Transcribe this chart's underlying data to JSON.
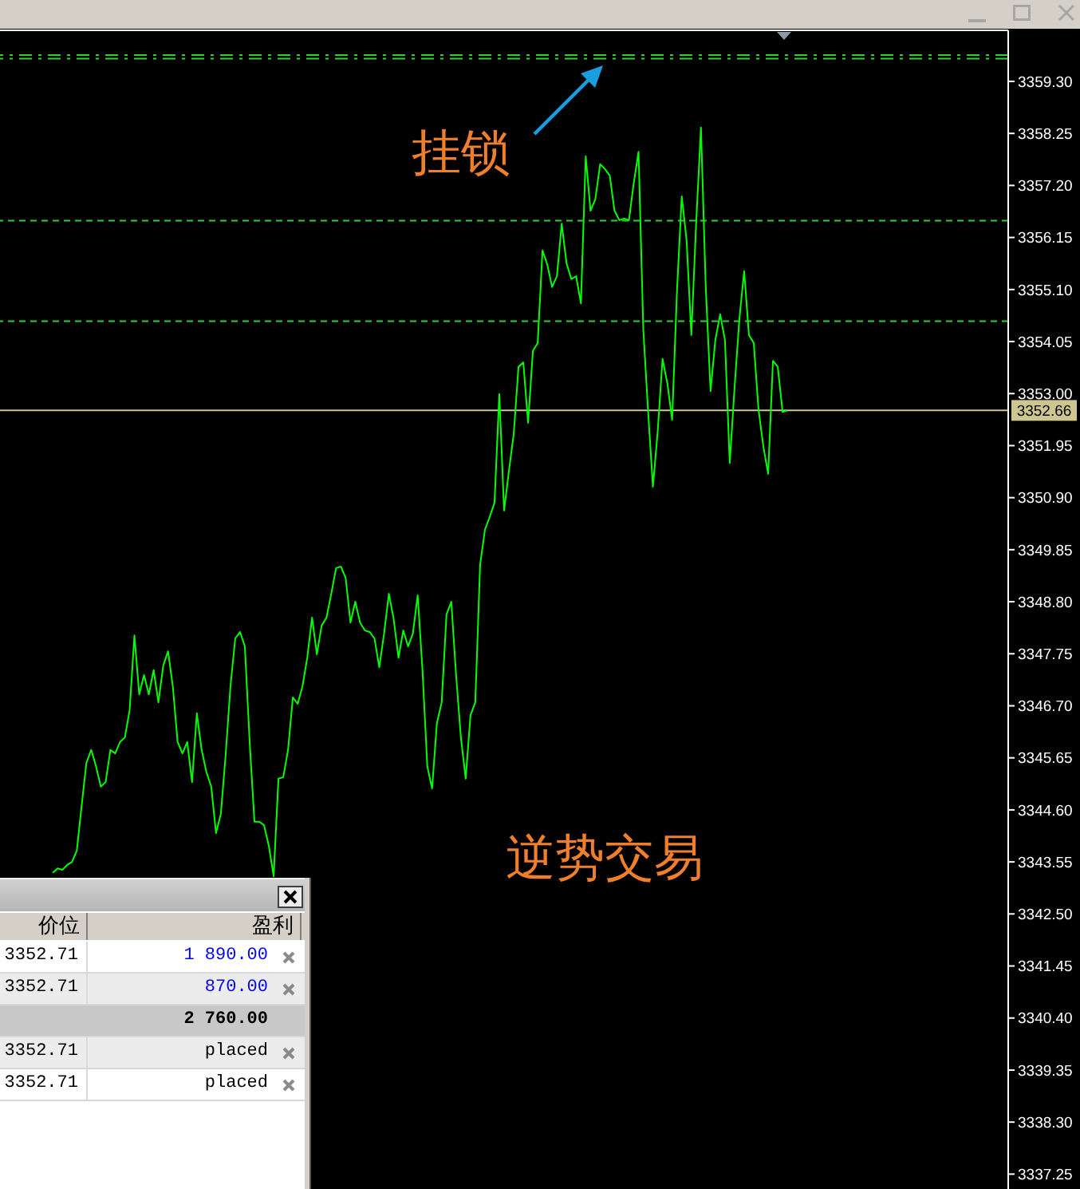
{
  "chart_data": [
    {
      "type": "line",
      "annotations": [
        "挂锁",
        "逆势交易"
      ],
      "categories": [
        null,
        null,
        null,
        null,
        null,
        null,
        null,
        null,
        null,
        null,
        null,
        null,
        null,
        null,
        null,
        null,
        null,
        null,
        null,
        null,
        null,
        null,
        null,
        null,
        null,
        null,
        null,
        null,
        null,
        null,
        null,
        null,
        null,
        null,
        null,
        null,
        null,
        null,
        null,
        null,
        null,
        null,
        null,
        null,
        null,
        null,
        null,
        null,
        null,
        null,
        null,
        null,
        null,
        null,
        null,
        null,
        null,
        null,
        null,
        null,
        null,
        null,
        null,
        null,
        null,
        null,
        null,
        null,
        null,
        null,
        null,
        null,
        null,
        null,
        null,
        null,
        null,
        null,
        null,
        null,
        null,
        null,
        null,
        null,
        null,
        null,
        null,
        null,
        null,
        null,
        null,
        null,
        null,
        null,
        null,
        null,
        null,
        null,
        null,
        null,
        null,
        null,
        null,
        null,
        null,
        null,
        null,
        null,
        null,
        null,
        null,
        null,
        null,
        null,
        null,
        null,
        null,
        null,
        null,
        null,
        null,
        null,
        null,
        null,
        null,
        null,
        null,
        null,
        null,
        null,
        null,
        null,
        null,
        null,
        null,
        null,
        null,
        null,
        null,
        null,
        null,
        null,
        null,
        null,
        null,
        null,
        null,
        null,
        null,
        null,
        null,
        null,
        null,
        null,
        null,
        null,
        null,
        null,
        null,
        null,
        null,
        null,
        null,
        null,
        null,
        null,
        null,
        null,
        null,
        null,
        null,
        null,
        null,
        null,
        null,
        null,
        null,
        null,
        null,
        null,
        null,
        null,
        null,
        null,
        null,
        null,
        null,
        null,
        null,
        null,
        null,
        null,
        null,
        null,
        null,
        null,
        null,
        null,
        null,
        null,
        null,
        null,
        null,
        null,
        null,
        null,
        null,
        null,
        null,
        null,
        null
      ],
      "series": [
        {
          "color": "#00ff00",
          "values": [
            null,
            null,
            null,
            null,
            null,
            null,
            null,
            null,
            null,
            null,
            null,
            3343.33,
            3343.42,
            3343.39,
            3343.49,
            3343.55,
            3343.78,
            3344.68,
            3345.55,
            3345.81,
            3345.48,
            3345.07,
            3345.16,
            3345.81,
            3345.74,
            3345.97,
            3346.06,
            3346.61,
            3348.12,
            3346.93,
            3347.32,
            3346.93,
            3347.42,
            3346.77,
            3347.51,
            3347.8,
            3347.09,
            3345.97,
            3345.74,
            3345.97,
            3345.16,
            3346.55,
            3345.81,
            3345.36,
            3345.07,
            3344.13,
            3344.52,
            3345.71,
            3347.09,
            3348.06,
            3348.19,
            3347.9,
            3345.97,
            3344.36,
            3344.36,
            3344.29,
            3343.87,
            3343.26,
            3345.23,
            3345.26,
            3345.81,
            3346.87,
            3346.74,
            3347.09,
            3347.67,
            3348.48,
            3347.74,
            3348.32,
            3348.48,
            3348.96,
            3349.48,
            3349.51,
            3349.28,
            3348.38,
            3348.8,
            3348.38,
            3348.22,
            3348.19,
            3348.06,
            3347.48,
            3348.16,
            3348.96,
            3348.45,
            3347.67,
            3348.22,
            3347.9,
            3348.16,
            3348.93,
            3347.42,
            3345.48,
            3345.03,
            3346.35,
            3346.77,
            3348.54,
            3348.8,
            3347.32,
            3346.06,
            3345.23,
            3346.51,
            3346.77,
            3349.54,
            3350.25,
            3350.51,
            3350.8,
            3352.99,
            3350.64,
            3351.44,
            3352.18,
            3353.54,
            3353.63,
            3352.41,
            3353.86,
            3354.02,
            3355.89,
            3355.6,
            3355.15,
            3355.37,
            3356.43,
            3355.63,
            3355.31,
            3355.37,
            3354.82,
            3357.79,
            3356.69,
            3356.92,
            3357.63,
            3357.53,
            3357.4,
            3356.69,
            3356.5,
            3356.53,
            3356.5,
            3357.24,
            3357.88,
            3354.28,
            3352.63,
            3351.12,
            3352.25,
            3353.7,
            3353.21,
            3352.47,
            3355.05,
            3356.98,
            3356.11,
            3354.18,
            3356.43,
            3358.37,
            3355.15,
            3353.05,
            3354.08,
            3354.6,
            3354.08,
            3351.6,
            3353.12,
            3354.5,
            3355.47,
            3354.18,
            3354.02,
            3352.67,
            3351.93,
            3351.38,
            3353.66,
            3353.54,
            3352.63,
            3352.66,
            null,
            null,
            null,
            null,
            null,
            null,
            null,
            null,
            null,
            null,
            null,
            null,
            null,
            null,
            null,
            null,
            null,
            null,
            null,
            null,
            null,
            null,
            null,
            null,
            null,
            null,
            null,
            null,
            null,
            null,
            null,
            null,
            null,
            null,
            null,
            null,
            null,
            null,
            null,
            null,
            null,
            null,
            null,
            null,
            null,
            null
          ]
        }
      ],
      "ylim": [
        3336.95,
        3360.33
      ],
      "yticks": [
        {
          "value": 3359.3,
          "label": "3359.30"
        },
        3358.25,
        {
          "value": 3357.2,
          "label": "3357.20"
        },
        3356.15,
        {
          "value": 3355.1,
          "label": "3355.10"
        },
        3354.05,
        {
          "value": 3353,
          "label": "3353.00"
        },
        3351.95,
        {
          "value": 3350.9,
          "label": "3350.90"
        },
        3349.85,
        {
          "value": 3348.8,
          "label": "3348.80"
        },
        3347.75,
        {
          "value": 3346.7,
          "label": "3346.70"
        },
        3345.65,
        {
          "value": 3344.6,
          "label": "3344.60"
        },
        3343.55,
        {
          "value": 3342.5,
          "label": "3342.50"
        },
        3341.45,
        {
          "value": 3340.4,
          "label": "3340.40"
        },
        3339.35,
        {
          "value": 3338.3,
          "label": "3338.30"
        },
        3337.25
      ],
      "ref_lines": [
        {
          "axis": "y",
          "value": 3359.83,
          "color": "#2ad42a",
          "line_style": "dashdot"
        },
        {
          "axis": "y",
          "value": 3359.76,
          "color": "#2ad42a",
          "line_style": "dashdot"
        },
        {
          "axis": "y",
          "value": 3356.49,
          "color": "#2ad42a",
          "line_style": "dashed"
        },
        {
          "axis": "y",
          "value": 3354.46,
          "color": "#2ad42a",
          "line_style": "dashed"
        },
        {
          "axis": "y",
          "value": 3352.66,
          "label": "3352.66",
          "color": "#cdc78f",
          "line_style": "solid"
        }
      ],
      "tick_labels": "y",
      "marker": "none"
    },
    {
      "type": "other",
      "categories": [
        "价位",
        "盈利"
      ],
      "cell_labels": [
        [
          "3352.71",
          "1 890.00"
        ],
        [
          "3352.71",
          "870.00"
        ],
        [
          null,
          "2 760.00"
        ],
        [
          "3352.71",
          "placed"
        ],
        [
          "3352.71",
          "placed"
        ]
      ]
    }
  ]
}
